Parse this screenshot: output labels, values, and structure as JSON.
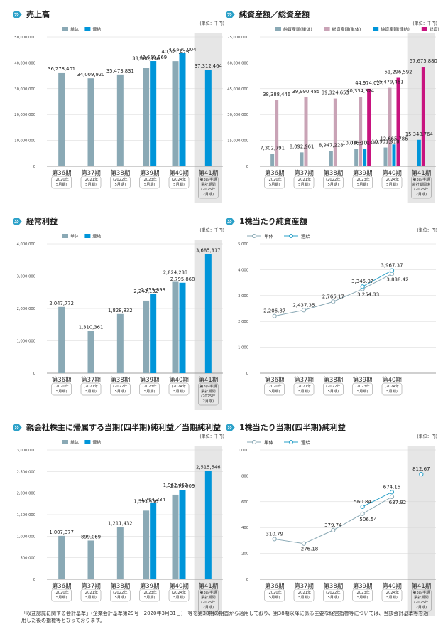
{
  "colors": {
    "tan": "#8aa9b5",
    "ren": "#0095d9",
    "nettan": "#c9a3b6",
    "netren": "#c8137f",
    "axis": "#9aaab0",
    "teal": "#2aa0c8",
    "shade": "#e6e6e6"
  },
  "unit_thousand": "(単位：千円)",
  "unit_yen": "(単位：円)",
  "legend": {
    "tan": "単体",
    "ren": "連結",
    "net_tan": "純資産額(単体)",
    "total_tan": "総資産額(単体)",
    "net_ren": "純資産額(連結)",
    "total_ren": "総資産額(連結)"
  },
  "x_cats": [
    {
      "p": "第36期",
      "s": [
        "(2020年",
        "5月期)"
      ]
    },
    {
      "p": "第37期",
      "s": [
        "(2021年",
        "5月期)"
      ]
    },
    {
      "p": "第38期",
      "s": [
        "(2022年",
        "5月期)"
      ]
    },
    {
      "p": "第39期",
      "s": [
        "(2023年",
        "5月期)"
      ]
    },
    {
      "p": "第40期",
      "s": [
        "(2024年",
        "5月期)"
      ]
    }
  ],
  "x41_cum": {
    "p": "第41期",
    "s": [
      "第3四半期",
      "累計期間",
      "(2025年",
      "2月期)"
    ]
  },
  "x41_end": {
    "p": "第41期",
    "s": [
      "第3四半期",
      "会計期間末",
      "(2025年",
      "2月期)"
    ]
  },
  "footnote": "「収益認識に関する会計基準」(企業会計基準第29号　2020年3月31日)　等を第38期の期首から適用しており、第38期以降に係る主要な経営指標等については、当該会計基準等を適用した後の指標等となっております。",
  "chart_data": [
    {
      "id": "sales",
      "type": "bar",
      "title": "売上高",
      "ylim": [
        0,
        50000000
      ],
      "yticks": [
        0,
        10000000,
        20000000,
        30000000,
        40000000,
        50000000
      ],
      "ytick_labels": [
        "0",
        "10,000,000",
        "20,000,000",
        "30,000,000",
        "40,000,000",
        "50,000,000"
      ],
      "categories": [
        "第36期",
        "第37期",
        "第38期",
        "第39期",
        "第40期",
        "第41期"
      ],
      "series": [
        {
          "name": "単体",
          "values": [
            36278401,
            34009920,
            35473831,
            38080136,
            40621473,
            null
          ],
          "labels": [
            "36,278,401",
            "34,009,920",
            "35,473,831",
            "38,080,136",
            "40,621,473",
            ""
          ]
        },
        {
          "name": "連結",
          "values": [
            null,
            null,
            null,
            40650969,
            43690004,
            37312464
          ],
          "labels": [
            "",
            "",
            "",
            "40,650,969",
            "43,690,004",
            "37,312,464"
          ]
        }
      ]
    },
    {
      "id": "assets",
      "type": "bar",
      "title": "純資産額／総資産額",
      "ylim": [
        0,
        75000000
      ],
      "yticks": [
        0,
        15000000,
        30000000,
        45000000,
        60000000,
        75000000
      ],
      "ytick_labels": [
        "0",
        "15,000,000",
        "30,000,000",
        "45,000,000",
        "60,000,000",
        "75,000,000"
      ],
      "categories": [
        "第36期",
        "第37期",
        "第38期",
        "第39期",
        "第40期",
        "第41期"
      ],
      "series": [
        {
          "name": "純資産額(単体)",
          "values": [
            7302791,
            8092961,
            8947228,
            10036101,
            10901918,
            null
          ],
          "labels": [
            "7,302,791",
            "8,092,961",
            "8,947,228",
            "10,036,101",
            "10,901,918",
            ""
          ]
        },
        {
          "name": "総資産額(単体)",
          "values": [
            38388446,
            39990485,
            39324653,
            40334324,
            45479461,
            null
          ],
          "labels": [
            "38,388,446",
            "39,990,485",
            "39,324,653",
            "40,334,324",
            "45,479,461",
            ""
          ]
        },
        {
          "name": "純資産額(連結)",
          "values": [
            null,
            null,
            null,
            10313367,
            12665786,
            15348764
          ],
          "labels": [
            "",
            "",
            "",
            "10,313,367",
            "12,665,786",
            "15,348,764"
          ]
        },
        {
          "name": "総資産額(連結)",
          "values": [
            null,
            null,
            null,
            44974027,
            51296592,
            57675880
          ],
          "labels": [
            "",
            "",
            "",
            "44,974,027",
            "51,296,592",
            "57,675,880"
          ]
        }
      ]
    },
    {
      "id": "ordinary",
      "type": "bar",
      "title": "経常利益",
      "ylim": [
        0,
        4000000
      ],
      "yticks": [
        0,
        1000000,
        2000000,
        3000000,
        4000000
      ],
      "ytick_labels": [
        "0",
        "1,000,000",
        "2,000,000",
        "3,000,000",
        "4,000,000"
      ],
      "categories": [
        "第36期",
        "第37期",
        "第38期",
        "第39期",
        "第40期",
        "第41期"
      ],
      "series": [
        {
          "name": "単体",
          "values": [
            2047772,
            1310361,
            1828832,
            2243132,
            2824233,
            null
          ],
          "labels": [
            "2,047,772",
            "1,310,361",
            "1,828,832",
            "2,243,132",
            "2,824,233",
            ""
          ]
        },
        {
          "name": "連結",
          "values": [
            null,
            null,
            null,
            2459593,
            2795868,
            3685317
          ],
          "labels": [
            "",
            "",
            "",
            "2,459,593",
            "2,795,868",
            "3,685,317"
          ]
        }
      ]
    },
    {
      "id": "bps",
      "type": "line",
      "title": "1株当たり純資産額",
      "ylim": [
        0,
        5000
      ],
      "yticks": [
        0,
        1000,
        2000,
        3000,
        4000,
        5000
      ],
      "ytick_labels": [
        "0",
        "1,000",
        "2,000",
        "3,000",
        "4,000",
        "5,000"
      ],
      "categories": [
        "第36期",
        "第37期",
        "第38期",
        "第39期",
        "第40期"
      ],
      "series": [
        {
          "name": "単体",
          "values": [
            2206.87,
            2437.35,
            2765.17,
            3254.33,
            3838.42
          ],
          "labels": [
            "2,206.87",
            "2,437.35",
            "2,765.17",
            "3,254.33",
            "3,838.42"
          ]
        },
        {
          "name": "連結",
          "values": [
            null,
            null,
            null,
            3345.07,
            3967.37
          ],
          "labels": [
            "",
            "",
            "",
            "3,345.07",
            "3,967.37"
          ]
        }
      ]
    },
    {
      "id": "netincome",
      "type": "bar",
      "title": "親会社株主に帰属する当期(四半期)純利益／当期純利益",
      "ylim": [
        0,
        3000000
      ],
      "yticks": [
        0,
        500000,
        1000000,
        1500000,
        2000000,
        2500000,
        3000000
      ],
      "ytick_labels": [
        "0",
        "500,000",
        "1,000,000",
        "1,500,000",
        "2,000,000",
        "2,500,000",
        "3,000,000"
      ],
      "categories": [
        "第36期",
        "第37期",
        "第38期",
        "第39期",
        "第40期",
        "第41期"
      ],
      "series": [
        {
          "name": "単体",
          "values": [
            1007377,
            899069,
            1211432,
            1593436,
            1962452,
            null
          ],
          "labels": [
            "1,007,377",
            "899,069",
            "1,211,432",
            "1,593,436",
            "1,962,452",
            ""
          ]
        },
        {
          "name": "連結",
          "values": [
            null,
            null,
            null,
            1764234,
            2073909,
            2515546
          ],
          "labels": [
            "",
            "",
            "",
            "1,764,234",
            "2,073,909",
            "2,515,546"
          ]
        }
      ]
    },
    {
      "id": "eps",
      "type": "line",
      "title": "1株当たり当期(四半期)純利益",
      "ylim": [
        0,
        1000
      ],
      "yticks": [
        0,
        200,
        400,
        600,
        800,
        1000
      ],
      "ytick_labels": [
        "0",
        "200",
        "400",
        "600",
        "800",
        "1,000"
      ],
      "categories": [
        "第36期",
        "第37期",
        "第38期",
        "第39期",
        "第40期",
        "第41期"
      ],
      "series": [
        {
          "name": "単体",
          "values": [
            310.79,
            276.18,
            379.74,
            506.54,
            637.92,
            null
          ],
          "labels": [
            "310.79",
            "276.18",
            "379.74",
            "506.54",
            "637.92",
            ""
          ]
        },
        {
          "name": "連結",
          "values": [
            null,
            null,
            null,
            560.84,
            674.15,
            812.67
          ],
          "labels": [
            "",
            "",
            "",
            "560.84",
            "674.15",
            "812.67"
          ]
        }
      ]
    }
  ]
}
